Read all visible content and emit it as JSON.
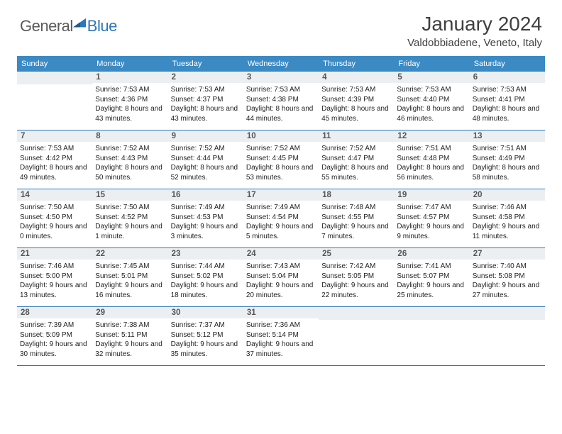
{
  "brand": {
    "part1": "General",
    "part2": "Blue"
  },
  "title": "January 2024",
  "location": "Valdobbiadene, Veneto, Italy",
  "colors": {
    "header_bg": "#3b8ac4",
    "divider": "#2b76bd",
    "daynum_bg": "#eceff1",
    "text": "#333333"
  },
  "weekdays": [
    "Sunday",
    "Monday",
    "Tuesday",
    "Wednesday",
    "Thursday",
    "Friday",
    "Saturday"
  ],
  "weeks": [
    [
      {
        "n": "",
        "sunrise": "",
        "sunset": "",
        "daylight": ""
      },
      {
        "n": "1",
        "sunrise": "Sunrise: 7:53 AM",
        "sunset": "Sunset: 4:36 PM",
        "daylight": "Daylight: 8 hours and 43 minutes."
      },
      {
        "n": "2",
        "sunrise": "Sunrise: 7:53 AM",
        "sunset": "Sunset: 4:37 PM",
        "daylight": "Daylight: 8 hours and 43 minutes."
      },
      {
        "n": "3",
        "sunrise": "Sunrise: 7:53 AM",
        "sunset": "Sunset: 4:38 PM",
        "daylight": "Daylight: 8 hours and 44 minutes."
      },
      {
        "n": "4",
        "sunrise": "Sunrise: 7:53 AM",
        "sunset": "Sunset: 4:39 PM",
        "daylight": "Daylight: 8 hours and 45 minutes."
      },
      {
        "n": "5",
        "sunrise": "Sunrise: 7:53 AM",
        "sunset": "Sunset: 4:40 PM",
        "daylight": "Daylight: 8 hours and 46 minutes."
      },
      {
        "n": "6",
        "sunrise": "Sunrise: 7:53 AM",
        "sunset": "Sunset: 4:41 PM",
        "daylight": "Daylight: 8 hours and 48 minutes."
      }
    ],
    [
      {
        "n": "7",
        "sunrise": "Sunrise: 7:53 AM",
        "sunset": "Sunset: 4:42 PM",
        "daylight": "Daylight: 8 hours and 49 minutes."
      },
      {
        "n": "8",
        "sunrise": "Sunrise: 7:52 AM",
        "sunset": "Sunset: 4:43 PM",
        "daylight": "Daylight: 8 hours and 50 minutes."
      },
      {
        "n": "9",
        "sunrise": "Sunrise: 7:52 AM",
        "sunset": "Sunset: 4:44 PM",
        "daylight": "Daylight: 8 hours and 52 minutes."
      },
      {
        "n": "10",
        "sunrise": "Sunrise: 7:52 AM",
        "sunset": "Sunset: 4:45 PM",
        "daylight": "Daylight: 8 hours and 53 minutes."
      },
      {
        "n": "11",
        "sunrise": "Sunrise: 7:52 AM",
        "sunset": "Sunset: 4:47 PM",
        "daylight": "Daylight: 8 hours and 55 minutes."
      },
      {
        "n": "12",
        "sunrise": "Sunrise: 7:51 AM",
        "sunset": "Sunset: 4:48 PM",
        "daylight": "Daylight: 8 hours and 56 minutes."
      },
      {
        "n": "13",
        "sunrise": "Sunrise: 7:51 AM",
        "sunset": "Sunset: 4:49 PM",
        "daylight": "Daylight: 8 hours and 58 minutes."
      }
    ],
    [
      {
        "n": "14",
        "sunrise": "Sunrise: 7:50 AM",
        "sunset": "Sunset: 4:50 PM",
        "daylight": "Daylight: 9 hours and 0 minutes."
      },
      {
        "n": "15",
        "sunrise": "Sunrise: 7:50 AM",
        "sunset": "Sunset: 4:52 PM",
        "daylight": "Daylight: 9 hours and 1 minute."
      },
      {
        "n": "16",
        "sunrise": "Sunrise: 7:49 AM",
        "sunset": "Sunset: 4:53 PM",
        "daylight": "Daylight: 9 hours and 3 minutes."
      },
      {
        "n": "17",
        "sunrise": "Sunrise: 7:49 AM",
        "sunset": "Sunset: 4:54 PM",
        "daylight": "Daylight: 9 hours and 5 minutes."
      },
      {
        "n": "18",
        "sunrise": "Sunrise: 7:48 AM",
        "sunset": "Sunset: 4:55 PM",
        "daylight": "Daylight: 9 hours and 7 minutes."
      },
      {
        "n": "19",
        "sunrise": "Sunrise: 7:47 AM",
        "sunset": "Sunset: 4:57 PM",
        "daylight": "Daylight: 9 hours and 9 minutes."
      },
      {
        "n": "20",
        "sunrise": "Sunrise: 7:46 AM",
        "sunset": "Sunset: 4:58 PM",
        "daylight": "Daylight: 9 hours and 11 minutes."
      }
    ],
    [
      {
        "n": "21",
        "sunrise": "Sunrise: 7:46 AM",
        "sunset": "Sunset: 5:00 PM",
        "daylight": "Daylight: 9 hours and 13 minutes."
      },
      {
        "n": "22",
        "sunrise": "Sunrise: 7:45 AM",
        "sunset": "Sunset: 5:01 PM",
        "daylight": "Daylight: 9 hours and 16 minutes."
      },
      {
        "n": "23",
        "sunrise": "Sunrise: 7:44 AM",
        "sunset": "Sunset: 5:02 PM",
        "daylight": "Daylight: 9 hours and 18 minutes."
      },
      {
        "n": "24",
        "sunrise": "Sunrise: 7:43 AM",
        "sunset": "Sunset: 5:04 PM",
        "daylight": "Daylight: 9 hours and 20 minutes."
      },
      {
        "n": "25",
        "sunrise": "Sunrise: 7:42 AM",
        "sunset": "Sunset: 5:05 PM",
        "daylight": "Daylight: 9 hours and 22 minutes."
      },
      {
        "n": "26",
        "sunrise": "Sunrise: 7:41 AM",
        "sunset": "Sunset: 5:07 PM",
        "daylight": "Daylight: 9 hours and 25 minutes."
      },
      {
        "n": "27",
        "sunrise": "Sunrise: 7:40 AM",
        "sunset": "Sunset: 5:08 PM",
        "daylight": "Daylight: 9 hours and 27 minutes."
      }
    ],
    [
      {
        "n": "28",
        "sunrise": "Sunrise: 7:39 AM",
        "sunset": "Sunset: 5:09 PM",
        "daylight": "Daylight: 9 hours and 30 minutes."
      },
      {
        "n": "29",
        "sunrise": "Sunrise: 7:38 AM",
        "sunset": "Sunset: 5:11 PM",
        "daylight": "Daylight: 9 hours and 32 minutes."
      },
      {
        "n": "30",
        "sunrise": "Sunrise: 7:37 AM",
        "sunset": "Sunset: 5:12 PM",
        "daylight": "Daylight: 9 hours and 35 minutes."
      },
      {
        "n": "31",
        "sunrise": "Sunrise: 7:36 AM",
        "sunset": "Sunset: 5:14 PM",
        "daylight": "Daylight: 9 hours and 37 minutes."
      },
      {
        "n": "",
        "sunrise": "",
        "sunset": "",
        "daylight": ""
      },
      {
        "n": "",
        "sunrise": "",
        "sunset": "",
        "daylight": ""
      },
      {
        "n": "",
        "sunrise": "",
        "sunset": "",
        "daylight": ""
      }
    ]
  ]
}
